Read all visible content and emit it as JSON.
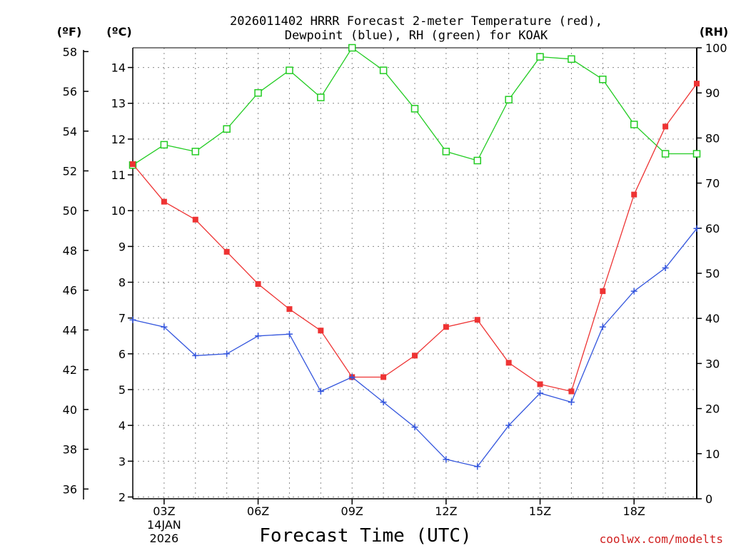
{
  "chart_data": {
    "type": "line",
    "title_line1": "2026011402 HRRR Forecast 2-meter Temperature (red),",
    "title_line2": "Dewpoint (blue), RH (green) for KOAK",
    "xlabel": "Forecast Time (UTC)",
    "credit": "coolwx.com/modelts",
    "left_unit_f": "(ºF)",
    "left_unit_c": "(ºC)",
    "right_unit": "(RH)",
    "x": [
      2,
      3,
      4,
      5,
      6,
      7,
      8,
      9,
      10,
      11,
      12,
      13,
      14,
      15,
      16,
      17,
      18,
      19,
      20
    ],
    "xlim": [
      2,
      20
    ],
    "x_ticks": [
      {
        "x": 3,
        "label": "03Z",
        "sub1": "14JAN",
        "sub2": "2026"
      },
      {
        "x": 6,
        "label": "06Z",
        "sub1": "",
        "sub2": ""
      },
      {
        "x": 9,
        "label": "09Z",
        "sub1": "",
        "sub2": ""
      },
      {
        "x": 12,
        "label": "12Z",
        "sub1": "",
        "sub2": ""
      },
      {
        "x": 15,
        "label": "15Z",
        "sub1": "",
        "sub2": ""
      },
      {
        "x": 18,
        "label": "18Z",
        "sub1": "",
        "sub2": ""
      }
    ],
    "celsius_ticks": [
      2,
      3,
      4,
      5,
      6,
      7,
      8,
      9,
      10,
      11,
      12,
      13,
      14
    ],
    "fahrenheit_ticks": [
      36,
      38,
      40,
      42,
      44,
      46,
      48,
      50,
      52,
      54,
      56,
      58
    ],
    "rh_ticks": [
      0,
      10,
      20,
      30,
      40,
      50,
      60,
      70,
      80,
      90,
      100
    ],
    "ylim_c": [
      1.95,
      14.55
    ],
    "ylim_rh": [
      0,
      100
    ],
    "series": [
      {
        "name": "Temperature",
        "unit": "C",
        "color": "#ee3333",
        "marker": "filled-square",
        "values": [
          11.3,
          10.25,
          9.75,
          8.85,
          7.95,
          7.25,
          6.65,
          5.35,
          5.35,
          5.95,
          6.75,
          6.95,
          5.75,
          5.15,
          4.95,
          7.75,
          10.45,
          12.35,
          13.55
        ]
      },
      {
        "name": "Dewpoint",
        "unit": "C",
        "color": "#3355dd",
        "marker": "plus",
        "values": [
          6.95,
          6.75,
          5.95,
          6.0,
          6.5,
          6.55,
          4.95,
          5.35,
          4.65,
          3.95,
          3.05,
          2.85,
          4.0,
          4.9,
          4.65,
          6.75,
          7.75,
          8.4,
          9.5
        ]
      },
      {
        "name": "RH",
        "unit": "%",
        "color": "#22cc22",
        "marker": "open-square",
        "values": [
          74,
          78.5,
          77,
          82,
          90,
          95,
          89,
          100,
          95,
          86.5,
          77,
          75,
          88.5,
          98,
          97.5,
          93,
          83,
          76.5,
          76.5
        ]
      }
    ]
  }
}
